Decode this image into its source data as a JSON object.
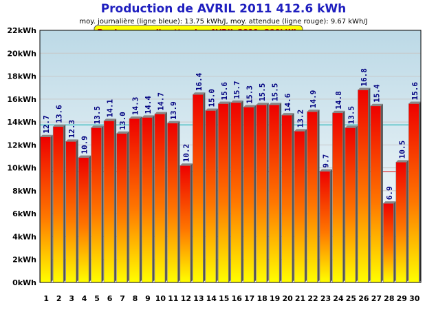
{
  "chart_data": {
    "type": "bar",
    "title": "Production de AVRIL 2011  412.6 kWh",
    "subtitle": "moy. journalière (ligne bleue): 13.75 kWh/J,  moy. attendue (ligne rouge): 9.67 kWh/J",
    "banner": "Prod. mensuelle attendue AVRIL 2011: 290kWh",
    "categories": [
      "1",
      "2",
      "3",
      "4",
      "5",
      "6",
      "7",
      "8",
      "9",
      "10",
      "11",
      "12",
      "13",
      "14",
      "15",
      "16",
      "17",
      "18",
      "19",
      "20",
      "21",
      "22",
      "23",
      "24",
      "25",
      "26",
      "27",
      "28",
      "29",
      "30"
    ],
    "values": [
      12.7,
      13.6,
      12.3,
      10.9,
      13.5,
      14.1,
      13.0,
      14.3,
      14.4,
      14.7,
      13.9,
      10.2,
      16.4,
      15.0,
      15.6,
      15.7,
      15.3,
      15.5,
      15.5,
      14.6,
      13.2,
      14.9,
      9.7,
      14.8,
      13.5,
      16.8,
      15.4,
      6.9,
      10.5,
      15.6
    ],
    "value_labels": [
      "12.7",
      "13.6",
      "12.3",
      "10.9",
      "13.5",
      "14.1",
      "13.0",
      "14.3",
      "14.4",
      "14.7",
      "13.9",
      "10.2",
      "16.4",
      "15.0",
      "15.6",
      "15.7",
      "15.3",
      "15.5",
      "15.5",
      "14.6",
      "13.2",
      "14.9",
      "9.7",
      "14.8",
      "13.5",
      "16.8",
      "15.4",
      "6.9",
      "10.5",
      "15.6"
    ],
    "ylim": [
      0,
      22
    ],
    "yticks": [
      0,
      2,
      4,
      6,
      8,
      10,
      12,
      14,
      16,
      18,
      20,
      22
    ],
    "ytick_labels": [
      "0kWh",
      "2kWh",
      "4kWh",
      "6kWh",
      "8kWh",
      "10kWh",
      "12kWh",
      "14kWh",
      "16kWh",
      "18kWh",
      "20kWh",
      "22kWh"
    ],
    "reference_lines": [
      {
        "value": 13.75,
        "color": "#00aaaa"
      },
      {
        "value": 9.67,
        "color": "#dd0000"
      }
    ],
    "grid": true,
    "colors": {
      "title": "#1f1fbf",
      "bar_top": "#ee0000",
      "bar_bottom": "#ffff00",
      "bar_side": "#666666",
      "data_label": "#000080",
      "banner_fill": "#ffff00",
      "plot_bg_top": "#bcd9e6",
      "plot_bg_bottom": "#ffffff"
    }
  }
}
